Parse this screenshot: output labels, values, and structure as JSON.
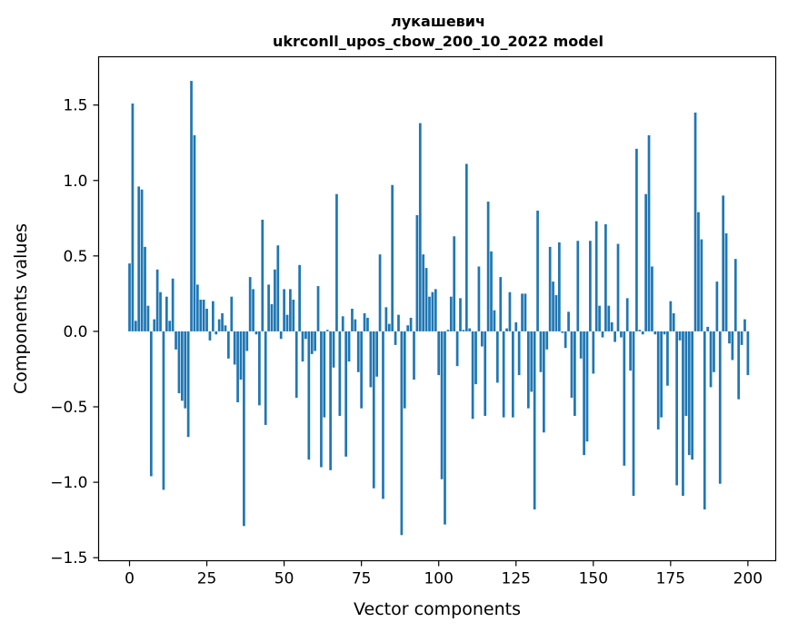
{
  "chart_data": {
    "type": "bar",
    "title_line1": "лукашевич",
    "title_line2": "ukrconll_upos_cbow_200_10_2022 model",
    "xlabel": "Vector components",
    "ylabel": "Components values",
    "xlim": [
      -10,
      209
    ],
    "ylim": [
      -1.52,
      1.82
    ],
    "xticks": [
      0,
      25,
      50,
      75,
      100,
      125,
      150,
      175,
      200
    ],
    "yticks": [
      -1.5,
      -1.0,
      -0.5,
      0.0,
      0.5,
      1.0,
      1.5
    ],
    "ytick_labels": [
      "−1.5",
      "−1.0",
      "−0.5",
      "0.0",
      "0.5",
      "1.0",
      "1.5"
    ],
    "bar_color": "#1f77b4",
    "grid": false,
    "legend": "none",
    "values": [
      0.45,
      1.51,
      0.07,
      0.96,
      0.94,
      0.56,
      0.17,
      -0.96,
      0.08,
      0.41,
      0.26,
      -1.05,
      0.23,
      0.07,
      0.35,
      -0.12,
      -0.41,
      -0.46,
      -0.51,
      -0.7,
      1.66,
      1.3,
      0.31,
      0.21,
      0.21,
      0.15,
      -0.06,
      0.2,
      -0.02,
      0.08,
      0.12,
      0.04,
      -0.18,
      0.23,
      -0.22,
      -0.47,
      -0.32,
      -1.29,
      -0.13,
      0.36,
      0.28,
      -0.02,
      -0.49,
      0.74,
      -0.62,
      0.31,
      0.18,
      0.41,
      0.57,
      -0.05,
      0.28,
      0.11,
      0.28,
      0.21,
      -0.44,
      0.44,
      -0.2,
      -0.05,
      -0.85,
      -0.15,
      -0.13,
      0.3,
      -0.9,
      -0.57,
      0.01,
      -0.92,
      -0.24,
      0.91,
      -0.56,
      0.1,
      -0.83,
      -0.2,
      0.15,
      0.08,
      -0.27,
      -0.51,
      0.12,
      0.09,
      -0.37,
      -1.04,
      -0.3,
      0.51,
      -1.11,
      0.16,
      0.05,
      0.97,
      -0.09,
      0.11,
      -1.35,
      -0.51,
      0.04,
      0.09,
      -0.32,
      0.77,
      1.38,
      0.51,
      0.42,
      0.23,
      0.26,
      0.28,
      -0.29,
      -0.98,
      -1.28,
      0.01,
      0.23,
      0.63,
      -0.23,
      0.22,
      0.01,
      1.11,
      0.02,
      -0.58,
      -0.35,
      0.43,
      -0.1,
      -0.56,
      0.86,
      0.53,
      0.14,
      -0.34,
      0.36,
      -0.57,
      0.02,
      0.26,
      -0.57,
      0.06,
      -0.29,
      0.25,
      0.25,
      -0.51,
      -0.4,
      -1.18,
      0.8,
      -0.27,
      -0.67,
      -0.12,
      0.56,
      0.33,
      0.24,
      0.59,
      -0.01,
      -0.11,
      0.13,
      -0.44,
      -0.56,
      0.6,
      -0.18,
      -0.82,
      -0.73,
      0.6,
      -0.28,
      0.73,
      0.17,
      -0.04,
      0.71,
      0.17,
      0.06,
      -0.07,
      0.58,
      -0.04,
      -0.89,
      0.22,
      -0.26,
      -1.09,
      1.21,
      0.01,
      -0.02,
      0.91,
      1.3,
      0.43,
      -0.02,
      -0.65,
      -0.57,
      -0.02,
      -0.36,
      0.2,
      0.12,
      -1.02,
      -0.06,
      -1.09,
      -0.56,
      -0.82,
      -0.85,
      1.45,
      0.79,
      0.61,
      -1.18,
      0.03,
      -0.37,
      -0.27,
      0.33,
      -1.01,
      0.9,
      0.65,
      -0.08,
      -0.19,
      0.48,
      -0.45,
      -0.09,
      0.08,
      -0.29
    ]
  }
}
